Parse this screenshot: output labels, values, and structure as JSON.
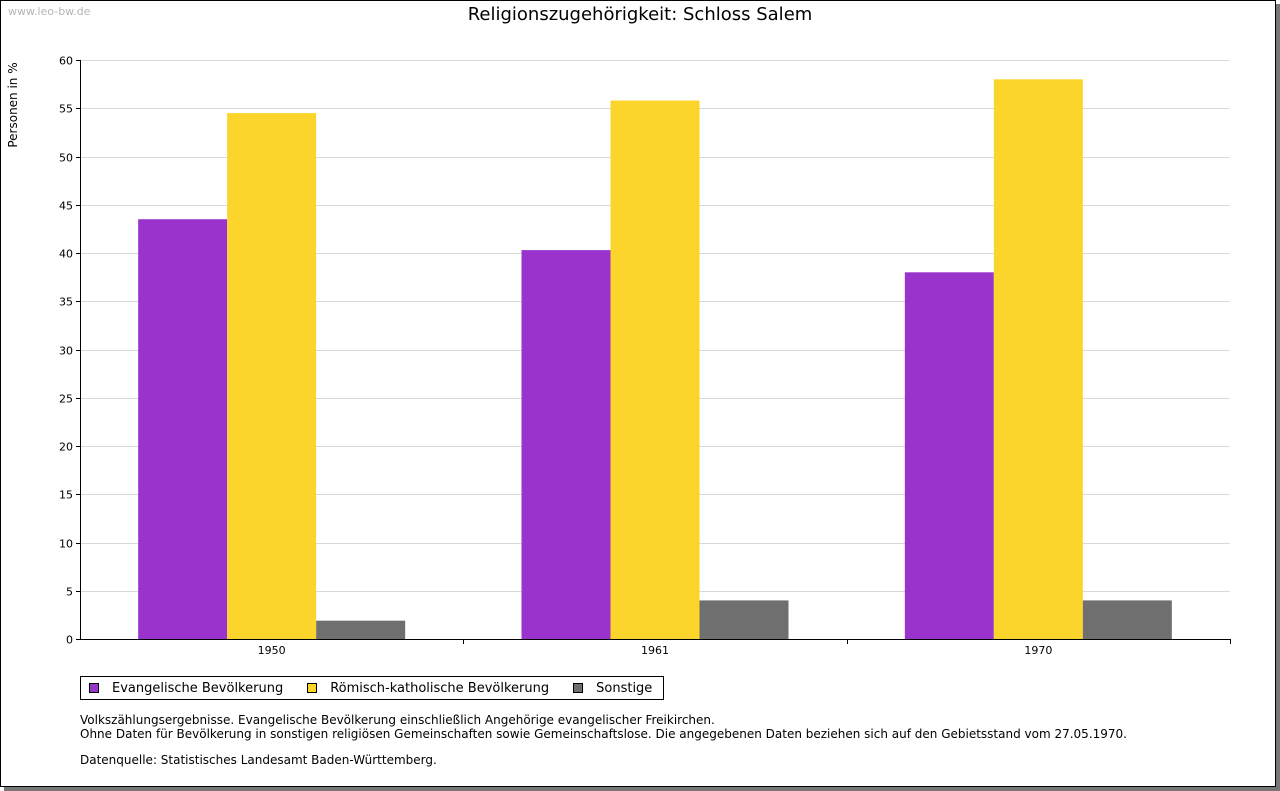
{
  "watermark": "www.leo-bw.de",
  "chart_data": {
    "type": "bar",
    "title": "Religionszugehörigkeit: Schloss Salem",
    "ylabel": "Personen in %",
    "xlabel": "",
    "categories": [
      "1950",
      "1961",
      "1970"
    ],
    "series": [
      {
        "name": "Evangelische Bevölkerung",
        "color": "#9933cc",
        "values": [
          43.5,
          40.3,
          38.0
        ]
      },
      {
        "name": "Römisch-katholische Bevölkerung",
        "color": "#fcd52c",
        "values": [
          54.5,
          55.8,
          58.0
        ]
      },
      {
        "name": "Sonstige",
        "color": "#6f6f6f",
        "values": [
          1.9,
          4.0,
          4.0
        ]
      }
    ],
    "ylim": [
      0,
      60
    ],
    "yticks": [
      0,
      5,
      10,
      15,
      20,
      25,
      30,
      35,
      40,
      45,
      50,
      55,
      60
    ],
    "grid": true,
    "legend": "bottom-left"
  },
  "notes": {
    "line1": "Volkszählungsergebnisse. Evangelische Bevölkerung einschließlich Angehörige evangelischer Freikirchen.",
    "line2": "Ohne Daten für Bevölkerung in sonstigen religiösen Gemeinschaften sowie Gemeinschaftslose. Die angegebenen Daten beziehen sich auf den Gebietsstand vom 27.05.1970.",
    "source": "Datenquelle: Statistisches Landesamt Baden-Württemberg."
  }
}
